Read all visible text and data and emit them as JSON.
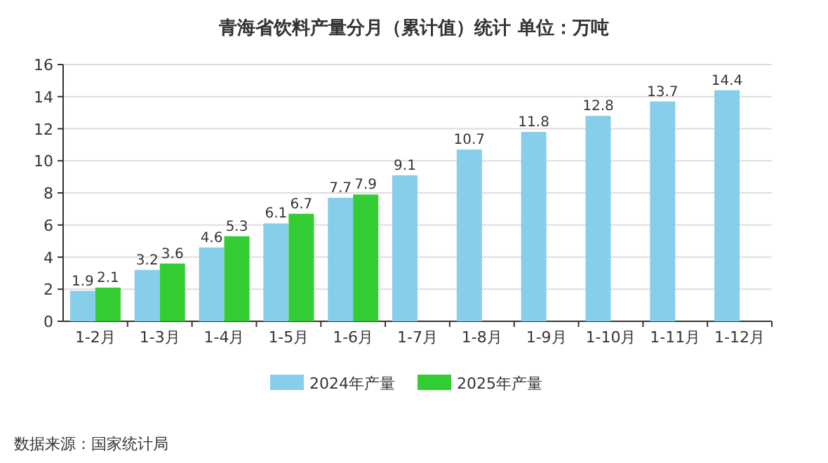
{
  "chart_data": {
    "type": "bar",
    "title": "青海省饮料产量分月（累计值）统计  单位：万吨",
    "categories": [
      "1-2月",
      "1-3月",
      "1-4月",
      "1-5月",
      "1-6月",
      "1-7月",
      "1-8月",
      "1-9月",
      "1-10月",
      "1-11月",
      "1-12月"
    ],
    "series": [
      {
        "name": "2024年产量",
        "color": "#87ceeb",
        "values": [
          1.9,
          3.2,
          4.6,
          6.1,
          7.7,
          9.1,
          10.7,
          11.8,
          12.8,
          13.7,
          14.4
        ]
      },
      {
        "name": "2025年产量",
        "color": "#33cc33",
        "values": [
          2.1,
          3.6,
          5.3,
          6.7,
          7.9,
          null,
          null,
          null,
          null,
          null,
          null
        ]
      }
    ],
    "ylim": [
      0,
      16
    ],
    "yticks": [
      0,
      2,
      4,
      6,
      8,
      10,
      12,
      14,
      16
    ],
    "grid": "y",
    "legend": "bottom",
    "data_labels": true,
    "annotations": [
      "数据来源：国家统计局"
    ]
  }
}
